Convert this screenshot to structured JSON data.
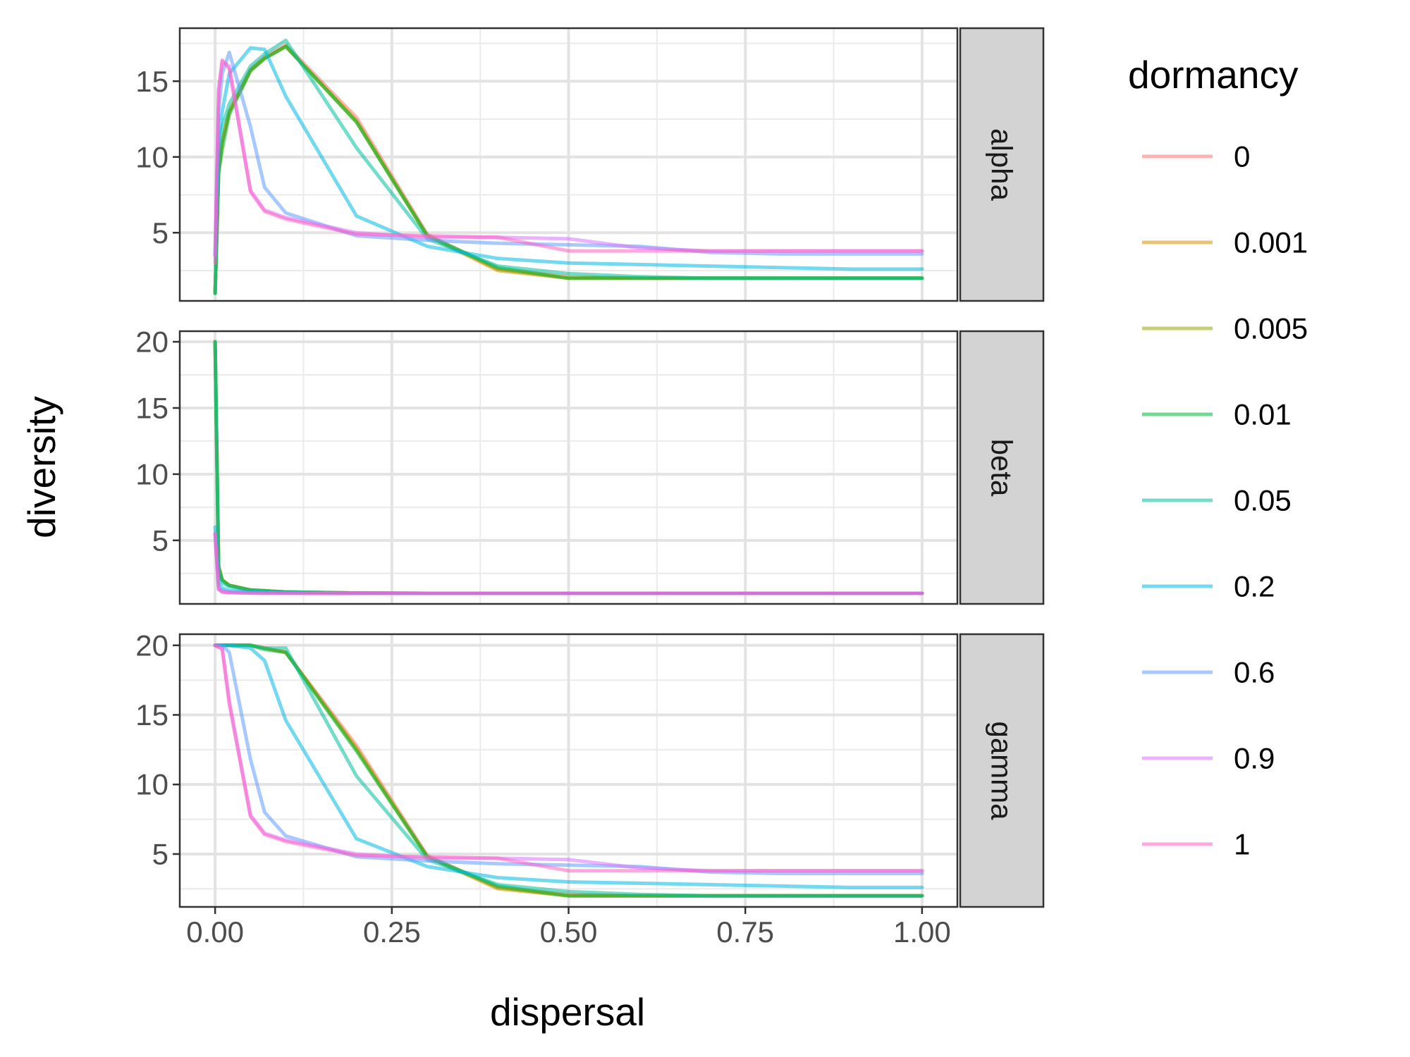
{
  "chart_data": {
    "type": "line",
    "xlabel": "dispersal",
    "ylabel": "diversity",
    "x_ticks": [
      "0.00",
      "0.25",
      "0.50",
      "0.75",
      "1.00"
    ],
    "xlim": [
      -0.05,
      1.05
    ],
    "legend": {
      "title": "dormancy",
      "placement": "right",
      "entries": [
        {
          "label": "0",
          "color": "#F8766D"
        },
        {
          "label": "0.001",
          "color": "#D39200"
        },
        {
          "label": "0.005",
          "color": "#93AA00"
        },
        {
          "label": "0.01",
          "color": "#00BA38"
        },
        {
          "label": "0.05",
          "color": "#00C19F"
        },
        {
          "label": "0.2",
          "color": "#00B9E3"
        },
        {
          "label": "0.6",
          "color": "#619CFF"
        },
        {
          "label": "0.9",
          "color": "#DB72FB"
        },
        {
          "label": "1",
          "color": "#FF61C3"
        }
      ]
    },
    "panels": [
      {
        "strip": "alpha",
        "ylim": [
          0.5,
          18.5
        ],
        "y_ticks": [
          5,
          10,
          15
        ],
        "series": [
          {
            "name": "0",
            "x": [
              0,
              0.005,
              0.01,
              0.02,
              0.05,
              0.07,
              0.1,
              0.2,
              0.3,
              0.4,
              0.5,
              0.6,
              0.7,
              0.8,
              0.9,
              1.0
            ],
            "y": [
              1.0,
              9.0,
              11.0,
              13.0,
              15.8,
              16.6,
              17.4,
              12.6,
              4.9,
              2.6,
              2.1,
              2.0,
              2.0,
              2.0,
              2.0,
              2.0
            ]
          },
          {
            "name": "0.001",
            "x": [
              0,
              0.005,
              0.01,
              0.02,
              0.05,
              0.07,
              0.1,
              0.2,
              0.3,
              0.4,
              0.5,
              0.6,
              0.7,
              0.8,
              0.9,
              1.0
            ],
            "y": [
              1.0,
              9.0,
              11.0,
              13.0,
              15.7,
              16.5,
              17.3,
              12.4,
              4.8,
              2.5,
              2.0,
              2.0,
              2.0,
              2.0,
              2.0,
              2.0
            ]
          },
          {
            "name": "0.005",
            "x": [
              0,
              0.005,
              0.01,
              0.02,
              0.05,
              0.07,
              0.1,
              0.2,
              0.3,
              0.4,
              0.5,
              0.6,
              0.7,
              0.8,
              0.9,
              1.0
            ],
            "y": [
              1.0,
              9.0,
              11.0,
              13.0,
              15.7,
              16.5,
              17.3,
              12.3,
              4.8,
              2.6,
              2.0,
              2.0,
              2.0,
              2.0,
              2.0,
              2.0
            ]
          },
          {
            "name": "0.01",
            "x": [
              0,
              0.005,
              0.01,
              0.02,
              0.05,
              0.07,
              0.1,
              0.2,
              0.3,
              0.4,
              0.5,
              0.6,
              0.7,
              0.8,
              0.9,
              1.0
            ],
            "y": [
              1.0,
              9.0,
              10.5,
              12.8,
              15.7,
              16.5,
              17.3,
              12.3,
              4.8,
              2.7,
              2.0,
              2.0,
              2.0,
              2.0,
              2.0,
              2.0
            ]
          },
          {
            "name": "0.05",
            "x": [
              0,
              0.005,
              0.01,
              0.02,
              0.05,
              0.07,
              0.1,
              0.2,
              0.3,
              0.4,
              0.5,
              0.6,
              0.7,
              0.8,
              0.9,
              1.0
            ],
            "y": [
              1.0,
              10.0,
              12.0,
              13.5,
              16.0,
              16.8,
              17.7,
              10.6,
              4.6,
              2.8,
              2.3,
              2.1,
              2.0,
              2.0,
              2.0,
              2.0
            ]
          },
          {
            "name": "0.2",
            "x": [
              0,
              0.005,
              0.01,
              0.02,
              0.05,
              0.07,
              0.1,
              0.2,
              0.3,
              0.4,
              0.5,
              0.6,
              0.7,
              0.8,
              0.9,
              1.0
            ],
            "y": [
              3.5,
              11.0,
              13.0,
              15.5,
              17.2,
              17.1,
              14.0,
              6.1,
              4.1,
              3.3,
              3.0,
              2.9,
              2.8,
              2.7,
              2.6,
              2.6
            ]
          },
          {
            "name": "0.6",
            "x": [
              0,
              0.005,
              0.01,
              0.02,
              0.05,
              0.07,
              0.1,
              0.2,
              0.3,
              0.4,
              0.5,
              0.6,
              0.7,
              0.8,
              0.9,
              1.0
            ],
            "y": [
              3.5,
              13.0,
              15.5,
              16.9,
              12.0,
              8.0,
              6.3,
              4.8,
              4.5,
              4.3,
              4.2,
              4.1,
              3.7,
              3.6,
              3.6,
              3.6
            ]
          },
          {
            "name": "0.9",
            "x": [
              0,
              0.005,
              0.01,
              0.02,
              0.05,
              0.07,
              0.1,
              0.2,
              0.3,
              0.4,
              0.5,
              0.6,
              0.7,
              0.8,
              0.9,
              1.0
            ],
            "y": [
              3.5,
              14.5,
              16.3,
              16.0,
              7.8,
              6.5,
              6.0,
              5.0,
              4.7,
              4.7,
              4.6,
              4.0,
              3.8,
              3.8,
              3.8,
              3.8
            ]
          },
          {
            "name": "1",
            "x": [
              0,
              0.005,
              0.01,
              0.02,
              0.05,
              0.07,
              0.1,
              0.2,
              0.3,
              0.4,
              0.5,
              0.6,
              0.7,
              0.8,
              0.9,
              1.0
            ],
            "y": [
              3.0,
              14.3,
              16.4,
              15.8,
              7.7,
              6.4,
              5.9,
              4.9,
              4.8,
              4.7,
              3.8,
              3.8,
              3.8,
              3.8,
              3.8,
              3.8
            ]
          }
        ]
      },
      {
        "strip": "beta",
        "ylim": [
          0.2,
          20.8
        ],
        "y_ticks": [
          5,
          10,
          15,
          20
        ],
        "series": [
          {
            "name": "0",
            "x": [
              0,
              0.005,
              0.01,
              0.02,
              0.05,
              0.1,
              0.2,
              0.3,
              0.5,
              1.0
            ],
            "y": [
              20.0,
              3.0,
              2.0,
              1.6,
              1.25,
              1.1,
              1.02,
              1.0,
              1.0,
              1.0
            ]
          },
          {
            "name": "0.001",
            "x": [
              0,
              0.005,
              0.01,
              0.02,
              0.05,
              0.1,
              0.2,
              0.3,
              0.5,
              1.0
            ],
            "y": [
              20.0,
              3.0,
              2.0,
              1.6,
              1.25,
              1.1,
              1.02,
              1.0,
              1.0,
              1.0
            ]
          },
          {
            "name": "0.005",
            "x": [
              0,
              0.005,
              0.01,
              0.02,
              0.05,
              0.1,
              0.2,
              0.3,
              0.5,
              1.0
            ],
            "y": [
              20.0,
              3.0,
              2.0,
              1.6,
              1.25,
              1.1,
              1.02,
              1.0,
              1.0,
              1.0
            ]
          },
          {
            "name": "0.01",
            "x": [
              0,
              0.005,
              0.01,
              0.02,
              0.05,
              0.1,
              0.2,
              0.3,
              0.5,
              1.0
            ],
            "y": [
              20.0,
              3.0,
              2.0,
              1.6,
              1.25,
              1.1,
              1.02,
              1.0,
              1.0,
              1.0
            ]
          },
          {
            "name": "0.05",
            "x": [
              0,
              0.005,
              0.01,
              0.02,
              0.05,
              0.1,
              0.2,
              0.3,
              0.5,
              1.0
            ],
            "y": [
              20.0,
              2.7,
              1.8,
              1.5,
              1.2,
              1.1,
              1.02,
              1.0,
              1.0,
              1.0
            ]
          },
          {
            "name": "0.2",
            "x": [
              0,
              0.005,
              0.01,
              0.02,
              0.05,
              0.1,
              0.2,
              0.3,
              0.5,
              1.0
            ],
            "y": [
              6.0,
              1.8,
              1.4,
              1.2,
              1.1,
              1.05,
              1.0,
              1.0,
              1.0,
              1.0
            ]
          },
          {
            "name": "0.6",
            "x": [
              0,
              0.005,
              0.01,
              0.02,
              0.05,
              0.1,
              0.2,
              0.3,
              0.5,
              1.0
            ],
            "y": [
              5.5,
              1.4,
              1.2,
              1.1,
              1.05,
              1.02,
              1.0,
              1.0,
              1.0,
              1.0
            ]
          },
          {
            "name": "0.9",
            "x": [
              0,
              0.005,
              0.01,
              0.02,
              0.05,
              0.1,
              0.2,
              0.3,
              0.5,
              1.0
            ],
            "y": [
              5.5,
              1.3,
              1.1,
              1.05,
              1.02,
              1.0,
              1.0,
              1.0,
              1.0,
              1.0
            ]
          },
          {
            "name": "1",
            "x": [
              0,
              0.005,
              0.01,
              0.02,
              0.05,
              0.1,
              0.2,
              0.3,
              0.5,
              1.0
            ],
            "y": [
              5.5,
              1.3,
              1.1,
              1.05,
              1.02,
              1.0,
              1.0,
              1.0,
              1.0,
              1.0
            ]
          }
        ]
      },
      {
        "strip": "gamma",
        "ylim": [
          1.2,
          20.8
        ],
        "y_ticks": [
          5,
          10,
          15,
          20
        ],
        "series": [
          {
            "name": "0",
            "x": [
              0,
              0.01,
              0.02,
              0.05,
              0.07,
              0.1,
              0.2,
              0.3,
              0.4,
              0.5,
              0.6,
              0.7,
              0.8,
              0.9,
              1.0
            ],
            "y": [
              20.0,
              20.0,
              20.0,
              20.0,
              19.8,
              19.5,
              12.8,
              4.9,
              2.6,
              2.1,
              2.0,
              2.0,
              2.0,
              2.0,
              2.0
            ]
          },
          {
            "name": "0.001",
            "x": [
              0,
              0.01,
              0.02,
              0.05,
              0.07,
              0.1,
              0.2,
              0.3,
              0.4,
              0.5,
              0.6,
              0.7,
              0.8,
              0.9,
              1.0
            ],
            "y": [
              20.0,
              20.0,
              20.0,
              20.0,
              19.8,
              19.5,
              12.6,
              4.8,
              2.5,
              2.0,
              2.0,
              2.0,
              2.0,
              2.0,
              2.0
            ]
          },
          {
            "name": "0.005",
            "x": [
              0,
              0.01,
              0.02,
              0.05,
              0.07,
              0.1,
              0.2,
              0.3,
              0.4,
              0.5,
              0.6,
              0.7,
              0.8,
              0.9,
              1.0
            ],
            "y": [
              20.0,
              20.0,
              20.0,
              20.0,
              19.8,
              19.5,
              12.5,
              4.8,
              2.6,
              2.0,
              2.0,
              2.0,
              2.0,
              2.0,
              2.0
            ]
          },
          {
            "name": "0.01",
            "x": [
              0,
              0.01,
              0.02,
              0.05,
              0.07,
              0.1,
              0.2,
              0.3,
              0.4,
              0.5,
              0.6,
              0.7,
              0.8,
              0.9,
              1.0
            ],
            "y": [
              20.0,
              20.0,
              20.0,
              20.0,
              19.7,
              19.5,
              12.4,
              4.8,
              2.7,
              2.0,
              2.0,
              2.0,
              2.0,
              2.0,
              2.0
            ]
          },
          {
            "name": "0.05",
            "x": [
              0,
              0.01,
              0.02,
              0.05,
              0.07,
              0.1,
              0.2,
              0.3,
              0.4,
              0.5,
              0.6,
              0.7,
              0.8,
              0.9,
              1.0
            ],
            "y": [
              20.0,
              20.0,
              20.0,
              20.0,
              19.8,
              19.8,
              10.6,
              4.6,
              2.8,
              2.3,
              2.1,
              2.0,
              2.0,
              2.0,
              2.0
            ]
          },
          {
            "name": "0.2",
            "x": [
              0,
              0.01,
              0.02,
              0.05,
              0.07,
              0.1,
              0.2,
              0.3,
              0.4,
              0.5,
              0.6,
              0.7,
              0.8,
              0.9,
              1.0
            ],
            "y": [
              20.0,
              20.0,
              20.0,
              19.8,
              18.9,
              14.6,
              6.1,
              4.1,
              3.3,
              3.0,
              2.9,
              2.8,
              2.7,
              2.6,
              2.6
            ]
          },
          {
            "name": "0.6",
            "x": [
              0,
              0.01,
              0.02,
              0.05,
              0.07,
              0.1,
              0.2,
              0.3,
              0.4,
              0.5,
              0.6,
              0.7,
              0.8,
              0.9,
              1.0
            ],
            "y": [
              20.0,
              20.0,
              19.5,
              11.8,
              8.0,
              6.3,
              4.8,
              4.5,
              4.3,
              4.2,
              4.1,
              3.7,
              3.6,
              3.6,
              3.6
            ]
          },
          {
            "name": "0.9",
            "x": [
              0,
              0.01,
              0.02,
              0.05,
              0.07,
              0.1,
              0.2,
              0.3,
              0.4,
              0.5,
              0.6,
              0.7,
              0.8,
              0.9,
              1.0
            ],
            "y": [
              20.0,
              19.8,
              16.0,
              7.8,
              6.5,
              6.0,
              5.0,
              4.7,
              4.7,
              4.6,
              4.0,
              3.8,
              3.8,
              3.8,
              3.8
            ]
          },
          {
            "name": "1",
            "x": [
              0,
              0.01,
              0.02,
              0.05,
              0.07,
              0.1,
              0.2,
              0.3,
              0.4,
              0.5,
              0.6,
              0.7,
              0.8,
              0.9,
              1.0
            ],
            "y": [
              20.0,
              19.7,
              15.8,
              7.7,
              6.4,
              5.9,
              4.9,
              4.8,
              4.7,
              3.8,
              3.8,
              3.8,
              3.8,
              3.8,
              3.8
            ]
          }
        ]
      }
    ]
  }
}
